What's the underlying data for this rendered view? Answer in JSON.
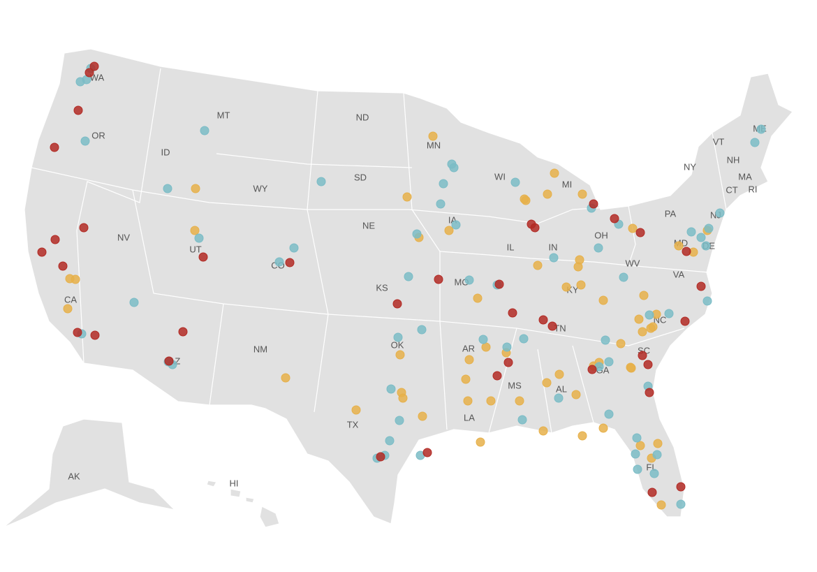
{
  "map": {
    "state_labels": [
      "WA",
      "OR",
      "CA",
      "NV",
      "ID",
      "MT",
      "WY",
      "UT",
      "CO",
      "AZ",
      "NM",
      "ND",
      "SD",
      "NE",
      "KS",
      "OK",
      "TX",
      "MN",
      "IA",
      "MO",
      "AR",
      "LA",
      "WI",
      "IL",
      "MI",
      "IN",
      "OH",
      "KY",
      "TN",
      "MS",
      "AL",
      "GA",
      "FL",
      "SC",
      "NC",
      "VA",
      "WV",
      "PA",
      "NY",
      "VT",
      "NH",
      "ME",
      "MA",
      "CT",
      "RI",
      "NJ",
      "DE",
      "MD",
      "AK",
      "HI"
    ]
  }
}
